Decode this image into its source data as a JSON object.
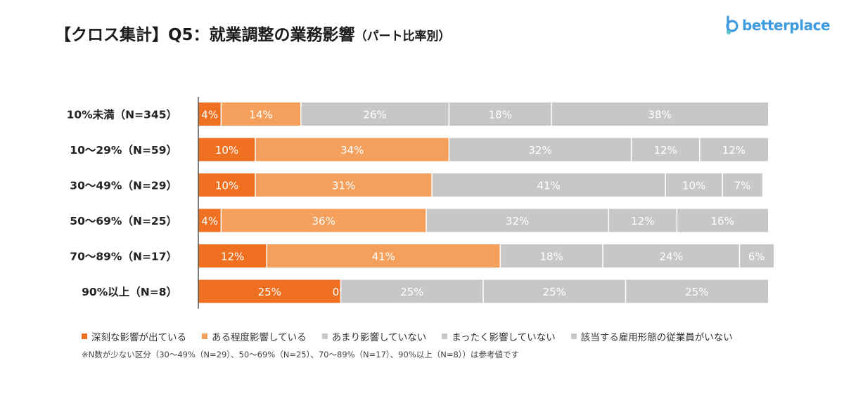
{
  "header": {
    "title": "【クロス集計】Q5：就業調整の業務影響",
    "title_sub": "（パート比率別）"
  },
  "logo": {
    "text": "betterplace",
    "icon": "betterplace-logo-icon",
    "color": "#3d9be0"
  },
  "legend": [
    {
      "label": "深刻な影響が出ている",
      "color": "#ee7020"
    },
    {
      "label": "ある程度影響している",
      "color": "#f4a05c"
    },
    {
      "label": "あまり影響していない",
      "color": "#c8c6c9"
    },
    {
      "label": "まったく影響していない",
      "color": "#c8c6c9"
    },
    {
      "label": "該当する雇用形態の従業員がいない",
      "color": "#c8c6c9"
    }
  ],
  "note": "※N数が少ない区分（30〜49%（N=29）、50〜69%（N=25）、70〜89%（N=17）、90%以上（N=8））は参考値です",
  "chart_data": {
    "type": "bar",
    "orientation": "horizontal",
    "stacked": true,
    "percent": true,
    "categories": [
      "10%未満（N=345）",
      "10〜29%（N=59）",
      "30〜49%（N=29）",
      "50〜69%（N=25）",
      "70〜89%（N=17）",
      "90%以上（N=8）"
    ],
    "series": [
      {
        "name": "深刻な影響が出ている",
        "color": "#ee7020",
        "values": [
          4,
          10,
          10,
          4,
          12,
          25
        ],
        "labels": [
          "4%",
          "10%",
          "10%",
          "4%",
          "12%",
          "25%"
        ]
      },
      {
        "name": "ある程度影響している",
        "color": "#f4a05c",
        "values": [
          14,
          34,
          31,
          36,
          41,
          0
        ],
        "labels": [
          "14%",
          "34%",
          "31%",
          "36%",
          "41%",
          "0%"
        ]
      },
      {
        "name": "あまり影響していない",
        "color": "#c8c6c9",
        "values": [
          26,
          32,
          41,
          32,
          18,
          25
        ],
        "labels": [
          "26%",
          "32%",
          "41%",
          "32%",
          "18%",
          "25%"
        ]
      },
      {
        "name": "まったく影響していない",
        "color": "#c8c6c9",
        "values": [
          18,
          12,
          10,
          12,
          24,
          25
        ],
        "labels": [
          "18%",
          "12%",
          "10%",
          "12%",
          "24%",
          "25%"
        ]
      },
      {
        "name": "該当する雇用形態の従業員がいない",
        "color": "#c8c6c9",
        "values": [
          38,
          12,
          7,
          16,
          6,
          25
        ],
        "labels": [
          "38%",
          "12%",
          "7%",
          "16%",
          "6%",
          "25%"
        ]
      }
    ],
    "xlim": [
      0,
      100
    ],
    "grid": false,
    "legend_position": "bottom"
  }
}
